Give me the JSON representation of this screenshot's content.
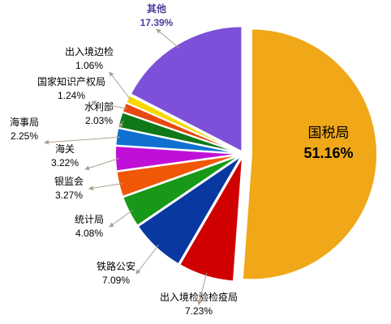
{
  "chart_data": {
    "type": "pie",
    "categories": [
      "国税局",
      "出入境检验检疫局",
      "铁路公安",
      "统计局",
      "银监会",
      "海关",
      "海事局",
      "水利部",
      "国家知识产权局",
      "出入境边检",
      "其他"
    ],
    "values": [
      51.16,
      7.23,
      7.09,
      4.08,
      3.27,
      3.22,
      2.25,
      2.03,
      1.24,
      1.06,
      17.39
    ],
    "value_labels": [
      "51.16%",
      "7.23%",
      "7.09%",
      "4.08%",
      "3.27%",
      "3.22%",
      "2.25%",
      "2.03%",
      "1.24%",
      "1.06%",
      "17.39%"
    ],
    "colors": [
      "#f0a818",
      "#d00000",
      "#0838a0",
      "#189818",
      "#f05808",
      "#c010d8",
      "#1070d0",
      "#107818",
      "#e84810",
      "#f8d800",
      "#7c50d8"
    ]
  }
}
